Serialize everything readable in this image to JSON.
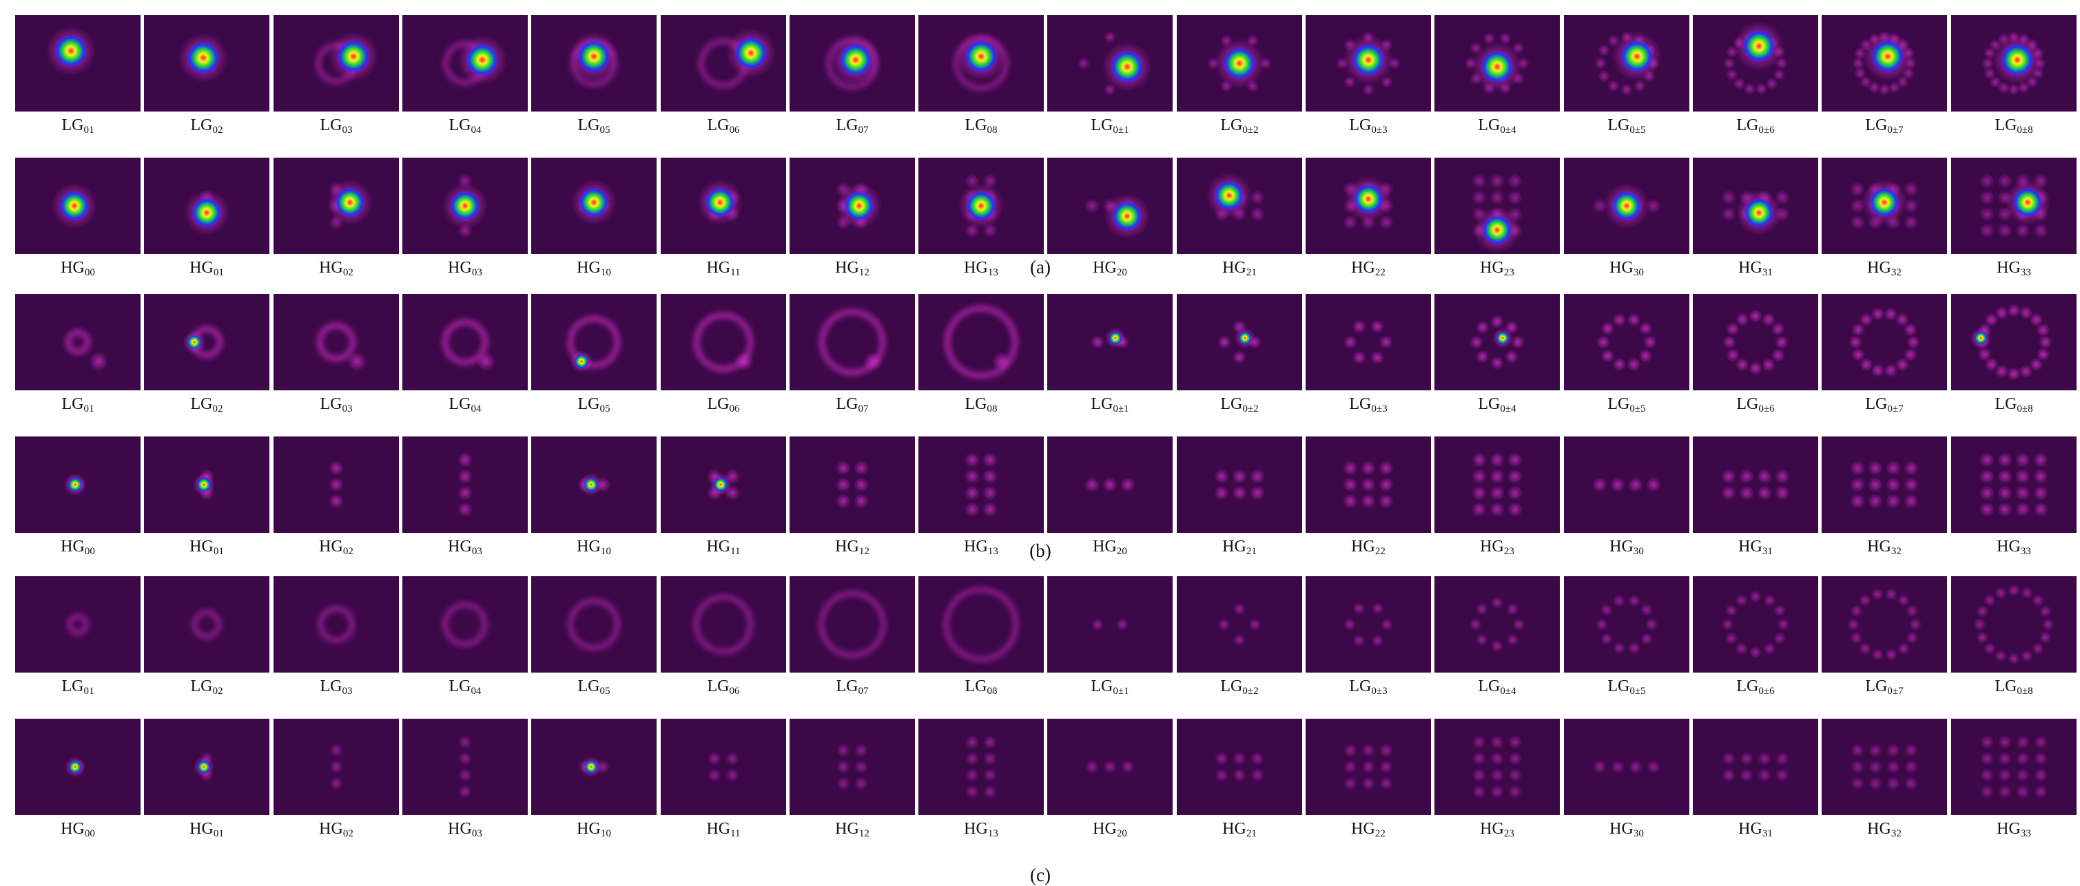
{
  "panels": [
    {
      "id": "a",
      "caption": "(a)",
      "rows": [
        {
          "family": "LG",
          "modes": [
            {
              "prefix": "LG",
              "index": "01"
            },
            {
              "prefix": "LG",
              "index": "02"
            },
            {
              "prefix": "LG",
              "index": "03"
            },
            {
              "prefix": "LG",
              "index": "04"
            },
            {
              "prefix": "LG",
              "index": "05"
            },
            {
              "prefix": "LG",
              "index": "06"
            },
            {
              "prefix": "LG",
              "index": "07"
            },
            {
              "prefix": "LG",
              "index": "08"
            },
            {
              "prefix": "LG",
              "index": "0±1"
            },
            {
              "prefix": "LG",
              "index": "0±2"
            },
            {
              "prefix": "LG",
              "index": "0±3"
            },
            {
              "prefix": "LG",
              "index": "0±4"
            },
            {
              "prefix": "LG",
              "index": "0±5"
            },
            {
              "prefix": "LG",
              "index": "0±6"
            },
            {
              "prefix": "LG",
              "index": "0±7"
            },
            {
              "prefix": "LG",
              "index": "0±8"
            }
          ]
        },
        {
          "family": "HG",
          "modes": [
            {
              "prefix": "HG",
              "index": "00"
            },
            {
              "prefix": "HG",
              "index": "01"
            },
            {
              "prefix": "HG",
              "index": "02"
            },
            {
              "prefix": "HG",
              "index": "03"
            },
            {
              "prefix": "HG",
              "index": "10"
            },
            {
              "prefix": "HG",
              "index": "11"
            },
            {
              "prefix": "HG",
              "index": "12"
            },
            {
              "prefix": "HG",
              "index": "13"
            },
            {
              "prefix": "HG",
              "index": "20"
            },
            {
              "prefix": "HG",
              "index": "21"
            },
            {
              "prefix": "HG",
              "index": "22"
            },
            {
              "prefix": "HG",
              "index": "23"
            },
            {
              "prefix": "HG",
              "index": "30"
            },
            {
              "prefix": "HG",
              "index": "31"
            },
            {
              "prefix": "HG",
              "index": "32"
            },
            {
              "prefix": "HG",
              "index": "33"
            }
          ]
        }
      ]
    },
    {
      "id": "b",
      "caption": "(b)",
      "rows": [
        {
          "family": "LG",
          "modes": [
            {
              "prefix": "LG",
              "index": "01"
            },
            {
              "prefix": "LG",
              "index": "02"
            },
            {
              "prefix": "LG",
              "index": "03"
            },
            {
              "prefix": "LG",
              "index": "04"
            },
            {
              "prefix": "LG",
              "index": "05"
            },
            {
              "prefix": "LG",
              "index": "06"
            },
            {
              "prefix": "LG",
              "index": "07"
            },
            {
              "prefix": "LG",
              "index": "08"
            },
            {
              "prefix": "LG",
              "index": "0±1"
            },
            {
              "prefix": "LG",
              "index": "0±2"
            },
            {
              "prefix": "LG",
              "index": "0±3"
            },
            {
              "prefix": "LG",
              "index": "0±4"
            },
            {
              "prefix": "LG",
              "index": "0±5"
            },
            {
              "prefix": "LG",
              "index": "0±6"
            },
            {
              "prefix": "LG",
              "index": "0±7"
            },
            {
              "prefix": "LG",
              "index": "0±8"
            }
          ]
        },
        {
          "family": "HG",
          "modes": [
            {
              "prefix": "HG",
              "index": "00"
            },
            {
              "prefix": "HG",
              "index": "01"
            },
            {
              "prefix": "HG",
              "index": "02"
            },
            {
              "prefix": "HG",
              "index": "03"
            },
            {
              "prefix": "HG",
              "index": "10"
            },
            {
              "prefix": "HG",
              "index": "11"
            },
            {
              "prefix": "HG",
              "index": "12"
            },
            {
              "prefix": "HG",
              "index": "13"
            },
            {
              "prefix": "HG",
              "index": "20"
            },
            {
              "prefix": "HG",
              "index": "21"
            },
            {
              "prefix": "HG",
              "index": "22"
            },
            {
              "prefix": "HG",
              "index": "23"
            },
            {
              "prefix": "HG",
              "index": "30"
            },
            {
              "prefix": "HG",
              "index": "31"
            },
            {
              "prefix": "HG",
              "index": "32"
            },
            {
              "prefix": "HG",
              "index": "33"
            }
          ]
        }
      ]
    },
    {
      "id": "c",
      "caption": "(c)",
      "rows": [
        {
          "family": "LG",
          "modes": [
            {
              "prefix": "LG",
              "index": "01"
            },
            {
              "prefix": "LG",
              "index": "02"
            },
            {
              "prefix": "LG",
              "index": "03"
            },
            {
              "prefix": "LG",
              "index": "04"
            },
            {
              "prefix": "LG",
              "index": "05"
            },
            {
              "prefix": "LG",
              "index": "06"
            },
            {
              "prefix": "LG",
              "index": "07"
            },
            {
              "prefix": "LG",
              "index": "08"
            },
            {
              "prefix": "LG",
              "index": "0±1"
            },
            {
              "prefix": "LG",
              "index": "0±2"
            },
            {
              "prefix": "LG",
              "index": "0±3"
            },
            {
              "prefix": "LG",
              "index": "0±4"
            },
            {
              "prefix": "LG",
              "index": "0±5"
            },
            {
              "prefix": "LG",
              "index": "0±6"
            },
            {
              "prefix": "LG",
              "index": "0±7"
            },
            {
              "prefix": "LG",
              "index": "0±8"
            }
          ]
        },
        {
          "family": "HG",
          "modes": [
            {
              "prefix": "HG",
              "index": "00"
            },
            {
              "prefix": "HG",
              "index": "01"
            },
            {
              "prefix": "HG",
              "index": "02"
            },
            {
              "prefix": "HG",
              "index": "03"
            },
            {
              "prefix": "HG",
              "index": "10"
            },
            {
              "prefix": "HG",
              "index": "11"
            },
            {
              "prefix": "HG",
              "index": "12"
            },
            {
              "prefix": "HG",
              "index": "13"
            },
            {
              "prefix": "HG",
              "index": "20"
            },
            {
              "prefix": "HG",
              "index": "21"
            },
            {
              "prefix": "HG",
              "index": "22"
            },
            {
              "prefix": "HG",
              "index": "23"
            },
            {
              "prefix": "HG",
              "index": "30"
            },
            {
              "prefix": "HG",
              "index": "31"
            },
            {
              "prefix": "HG",
              "index": "32"
            },
            {
              "prefix": "HG",
              "index": "33"
            }
          ]
        }
      ]
    }
  ],
  "colors": {
    "background": "#3d0848",
    "glow": "#e032d6",
    "hot_blue": "#2233ff",
    "hot_green": "#22dd33",
    "hot_yellow": "#ffee22",
    "hot_red": "#ff2222"
  }
}
